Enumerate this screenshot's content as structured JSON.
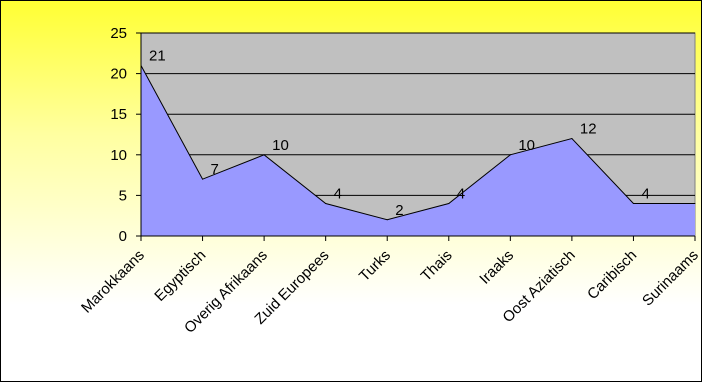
{
  "chart_data": {
    "type": "area",
    "title": "",
    "xlabel": "",
    "ylabel": "",
    "categories": [
      "Marokkaans",
      "Egyptisch",
      "Overig Afrikaans",
      "Zuid Europees",
      "Turks",
      "Thais",
      "Iraaks",
      "Oost Aziatisch",
      "Caribisch",
      "Surinaams"
    ],
    "series": [
      {
        "values": [
          21,
          7,
          10,
          4,
          2,
          4,
          10,
          12,
          4,
          4
        ]
      }
    ],
    "data_labels": [
      "21",
      "7",
      "10",
      "4",
      "2",
      "4",
      "10",
      "12",
      "4",
      "4"
    ],
    "ylim": [
      0,
      25
    ],
    "yticks": [
      0,
      5,
      10,
      15,
      20,
      25
    ],
    "ytick_labels": [
      "0",
      "5",
      "10",
      "15",
      "20",
      "25"
    ],
    "grid": true,
    "legend": "none",
    "colors": {
      "area_fill": "#9999ff",
      "plot_background": "#c0c0c0",
      "background_top": "#ffff33",
      "background_bottom": "#ffffff",
      "line": "#000000"
    }
  }
}
